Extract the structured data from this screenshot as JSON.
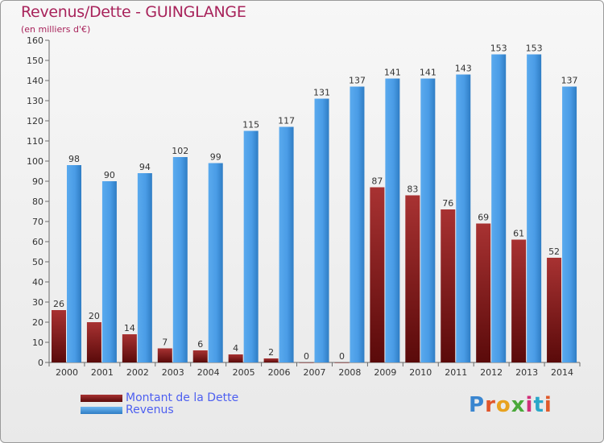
{
  "title": "Revenus/Dette - GUINGLANGE",
  "subtitle": "(en milliers d'€)",
  "logo": "Proxiti",
  "chart_data": {
    "type": "bar",
    "categories": [
      "2000",
      "2001",
      "2002",
      "2003",
      "2004",
      "2005",
      "2006",
      "2007",
      "2008",
      "2009",
      "2010",
      "2011",
      "2012",
      "2013",
      "2014"
    ],
    "series": [
      {
        "name": "Montant de la Dette",
        "color": "#7a1616",
        "values": [
          26,
          20,
          14,
          7,
          6,
          4,
          2,
          0,
          0,
          87,
          83,
          76,
          69,
          61,
          52
        ]
      },
      {
        "name": "Revenus",
        "color": "#3d93dc",
        "values": [
          98,
          90,
          94,
          102,
          99,
          115,
          117,
          131,
          137,
          141,
          141,
          143,
          153,
          153,
          137
        ]
      }
    ],
    "ylim": [
      0,
      160
    ],
    "ytick_step": 10,
    "legend_position": "bottom-left",
    "grid": false
  },
  "colors": {
    "title": "#a8235b",
    "legend_text": "#4d5ff0",
    "debt_light": "#b03a3a",
    "debt_dark": "#5e0c0c",
    "revenue_light": "#5aacef",
    "revenue_dark": "#2f7dc4"
  }
}
